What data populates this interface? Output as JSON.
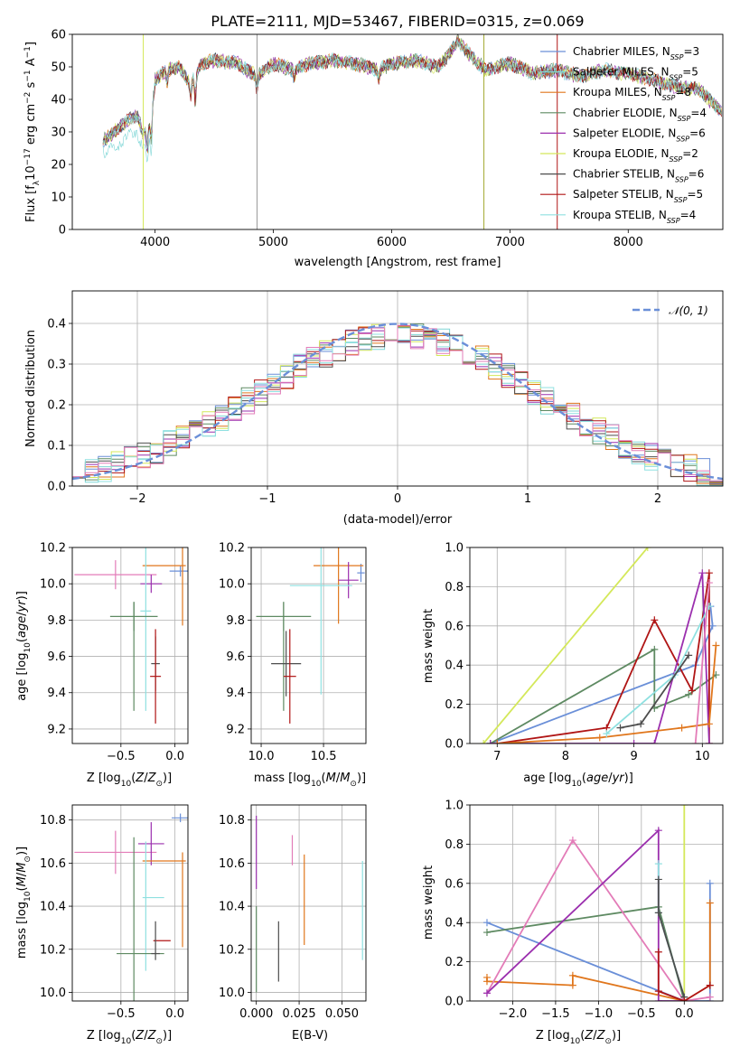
{
  "chart_data": [
    {
      "type": "line",
      "title": "PLATE=2111, MJD=53467, FIBERID=0315, z=0.069",
      "xlabel": "wavelength [Angstrom, rest frame]",
      "ylabel": "Flux [f_λ 10^-17 erg cm^-2 s^-1 A^-1]",
      "xlim": [
        3300,
        8800
      ],
      "ylim": [
        0,
        60
      ],
      "xticks": [
        "4000",
        "5000",
        "6000",
        "7000",
        "8000"
      ],
      "yticks": [
        "0",
        "10",
        "20",
        "30",
        "40",
        "50",
        "60"
      ],
      "grid": false,
      "legend_position": "top-right",
      "series": [
        {
          "name": "Chabrier MILES, N_SSP=3",
          "color": "#6a8fd8"
        },
        {
          "name": "Salpeter MILES, N_SSP=5",
          "color": "#7fd6d6"
        },
        {
          "name": "Kroupa MILES, N_SSP=8",
          "color": "#e0761c"
        },
        {
          "name": "Chabrier ELODIE, N_SSP=4",
          "color": "#5e8a62"
        },
        {
          "name": "Salpeter ELODIE, N_SSP=6",
          "color": "#9b2fae"
        },
        {
          "name": "Kroupa ELODIE, N_SSP=2",
          "color": "#d4e85a"
        },
        {
          "name": "Chabrier STELIB, N_SSP=6",
          "color": "#4d4d4d"
        },
        {
          "name": "Salpeter STELIB, N_SSP=5",
          "color": "#b01515"
        },
        {
          "name": "Kroupa STELIB, N_SSP=4",
          "color": "#8fe0e0"
        }
      ],
      "continuum": {
        "x": [
          3550,
          3650,
          3750,
          3850,
          3900,
          3960,
          4000,
          4100,
          4200,
          4300,
          4400,
          4500,
          4700,
          4862,
          5000,
          5175,
          5300,
          5500,
          5700,
          5890,
          6000,
          6200,
          6400,
          6563,
          6700,
          6800,
          7000,
          7200,
          7400,
          7600,
          7800,
          8000,
          8200,
          8400,
          8600,
          8800
        ],
        "y": [
          27,
          30,
          33,
          35,
          29,
          32,
          46,
          49,
          50,
          45,
          51,
          52,
          51,
          47,
          51,
          49,
          51,
          52,
          51,
          49,
          51,
          52,
          50,
          58,
          52,
          49,
          51,
          48,
          49,
          47,
          49,
          48,
          46,
          44,
          43,
          36
        ]
      },
      "spikes": [
        3900,
        4862,
        6780,
        7400
      ]
    },
    {
      "type": "histogram",
      "xlabel": "(data-model)/error",
      "ylabel": "Normed distribution",
      "xlim": [
        -2.5,
        2.5
      ],
      "ylim": [
        0,
        0.48
      ],
      "xticks": [
        "−2",
        "−1",
        "0",
        "1",
        "2"
      ],
      "yticks": [
        "0.0",
        "0.1",
        "0.2",
        "0.3",
        "0.4"
      ],
      "grid": true,
      "legend_position": "top-right",
      "legend": [
        "𝒩(0, 1)"
      ],
      "bin_width": 0.1,
      "reference_curve": {
        "name": "𝒩(0, 1)",
        "mean": 0,
        "sigma": 1,
        "color": "#6a8fd8"
      }
    },
    {
      "type": "scatter",
      "xlabel": "Z [log10(Z/Z⊙)]",
      "ylabel": "age  [log10(age/yr)]",
      "xlim": [
        -0.95,
        0.12
      ],
      "ylim": [
        9.12,
        10.2
      ],
      "xticks": [
        "−0.5",
        "0.0"
      ],
      "yticks": [
        "9.2",
        "9.4",
        "9.6",
        "9.8",
        "10.0",
        "10.2"
      ],
      "points": [
        {
          "x": -0.55,
          "xerr": 0.38,
          "y": 10.05,
          "yerr": 0.08,
          "color": "#e37cb8"
        },
        {
          "x": 0.05,
          "xerr": 0.1,
          "y": 10.07,
          "yerr": 0.03,
          "color": "#6a8fd8"
        },
        {
          "x": -0.1,
          "xerr": 0.2,
          "y": 10.1,
          "yerr": 0.0,
          "color": "#e0761c"
        },
        {
          "x": 0.07,
          "xerr": 0.0,
          "y": 10.05,
          "yerr": 0.28,
          "color": "#e0761c"
        },
        {
          "x": -0.22,
          "xerr": 0.1,
          "y": 10.0,
          "yerr": 0.05,
          "color": "#9b2fae"
        },
        {
          "x": -0.27,
          "xerr": 0.05,
          "y": 9.85,
          "yerr": 0.55,
          "color": "#8fe0e0"
        },
        {
          "x": -0.38,
          "xerr": 0.22,
          "y": 9.82,
          "yerr": 0.08,
          "color": "#5e8a62"
        },
        {
          "x": -0.38,
          "xerr": 0.0,
          "y": 9.6,
          "yerr": 0.3,
          "color": "#5e8a62"
        },
        {
          "x": -0.18,
          "xerr": 0.04,
          "y": 9.56,
          "yerr": 0.15,
          "color": "#4d4d4d"
        },
        {
          "x": -0.18,
          "xerr": 0.05,
          "y": 9.49,
          "yerr": 0.26,
          "color": "#b01515"
        }
      ]
    },
    {
      "type": "scatter",
      "xlabel": "mass [log10(M/M⊙)]",
      "ylabel": "",
      "xlim": [
        9.92,
        10.84
      ],
      "ylim": [
        9.12,
        10.2
      ],
      "xticks": [
        "10.0",
        "10.5"
      ],
      "yticks": [
        "9.2",
        "9.4",
        "9.6",
        "9.8",
        "10.0",
        "10.2"
      ],
      "points": [
        {
          "x": 10.8,
          "xerr": 0.03,
          "y": 10.06,
          "yerr": 0.05,
          "color": "#6a8fd8"
        },
        {
          "x": 10.62,
          "xerr": 0.2,
          "y": 10.1,
          "yerr": 0.32,
          "color": "#e0761c"
        },
        {
          "x": 10.7,
          "xerr": 0.08,
          "y": 10.02,
          "yerr": 0.1,
          "color": "#9b2fae"
        },
        {
          "x": 10.48,
          "xerr": 0.25,
          "y": 9.99,
          "yerr": 0.6,
          "color": "#8fe0e0"
        },
        {
          "x": 10.18,
          "xerr": 0.22,
          "y": 9.82,
          "yerr": 0.08,
          "color": "#5e8a62"
        },
        {
          "x": 10.18,
          "xerr": 0.0,
          "y": 9.6,
          "yerr": 0.3,
          "color": "#5e8a62"
        },
        {
          "x": 10.2,
          "xerr": 0.12,
          "y": 9.56,
          "yerr": 0.18,
          "color": "#4d4d4d"
        },
        {
          "x": 10.23,
          "xerr": 0.05,
          "y": 9.49,
          "yerr": 0.26,
          "color": "#b01515"
        }
      ]
    },
    {
      "type": "line",
      "xlabel": "age  [log10(age/yr)]",
      "ylabel": "mass weight",
      "xlim": [
        6.6,
        10.3
      ],
      "ylim": [
        0,
        1
      ],
      "xticks": [
        "7",
        "8",
        "9",
        "10"
      ],
      "yticks": [
        "0.0",
        "0.2",
        "0.4",
        "0.6",
        "0.8",
        "1.0"
      ],
      "grid": true,
      "series": [
        {
          "color": "#d4e85a",
          "x": [
            6.8,
            9.2
          ],
          "y": [
            0.0,
            1.0
          ]
        },
        {
          "color": "#6a8fd8",
          "x": [
            6.9,
            9.9,
            10.15,
            10.12
          ],
          "y": [
            0.0,
            0.4,
            0.6,
            0.7
          ]
        },
        {
          "color": "#5e8a62",
          "x": [
            6.9,
            9.3,
            9.3,
            9.8,
            10.2
          ],
          "y": [
            0.0,
            0.48,
            0.18,
            0.25,
            0.35
          ]
        },
        {
          "color": "#b01515",
          "x": [
            7.0,
            8.6,
            9.3,
            9.85,
            10.1,
            10.1
          ],
          "y": [
            0.0,
            0.08,
            0.63,
            0.27,
            0.87,
            0.0
          ]
        },
        {
          "color": "#9b2fae",
          "x": [
            6.9,
            9.0,
            9.3,
            10.0,
            10.1
          ],
          "y": [
            0.0,
            0.0,
            0.0,
            0.87,
            0.0
          ]
        },
        {
          "color": "#e0761c",
          "x": [
            7.0,
            8.5,
            9.7,
            10.1,
            10.2
          ],
          "y": [
            0.0,
            0.03,
            0.08,
            0.1,
            0.5
          ]
        },
        {
          "color": "#8fe0e0",
          "x": [
            8.6,
            9.6,
            10.1
          ],
          "y": [
            0.05,
            0.35,
            0.7
          ]
        },
        {
          "color": "#4d4d4d",
          "x": [
            8.8,
            9.1,
            9.8
          ],
          "y": [
            0.08,
            0.1,
            0.45
          ]
        },
        {
          "color": "#e37cb8",
          "x": [
            9.9,
            10.1
          ],
          "y": [
            0.0,
            0.82
          ]
        }
      ]
    },
    {
      "type": "scatter",
      "xlabel": "Z [log10(Z/Z⊙)]",
      "ylabel": "mass [log10(M/M⊙)]",
      "xlim": [
        -0.95,
        0.12
      ],
      "ylim": [
        9.96,
        10.87
      ],
      "xticks": [
        "−0.5",
        "0.0"
      ],
      "yticks": [
        "10.0",
        "10.2",
        "10.4",
        "10.6",
        "10.8"
      ],
      "points": [
        {
          "x": 0.05,
          "xerr": 0.08,
          "y": 10.81,
          "yerr": 0.02,
          "color": "#6a8fd8"
        },
        {
          "x": -0.55,
          "xerr": 0.38,
          "y": 10.65,
          "yerr": 0.1,
          "color": "#e37cb8"
        },
        {
          "x": -0.22,
          "xerr": 0.12,
          "y": 10.69,
          "yerr": 0.1,
          "color": "#9b2fae"
        },
        {
          "x": -0.1,
          "xerr": 0.2,
          "y": 10.61,
          "yerr": 0.0,
          "color": "#e0761c"
        },
        {
          "x": 0.07,
          "xerr": 0.0,
          "y": 10.43,
          "yerr": 0.22,
          "color": "#e0761c"
        },
        {
          "x": -0.2,
          "xerr": 0.1,
          "y": 10.44,
          "yerr": 0.0,
          "color": "#8fe0e0"
        },
        {
          "x": -0.27,
          "xerr": 0.0,
          "y": 10.4,
          "yerr": 0.3,
          "color": "#8fe0e0"
        },
        {
          "x": -0.38,
          "xerr": 0.0,
          "y": 10.34,
          "yerr": 0.38,
          "color": "#5e8a62"
        },
        {
          "x": -0.32,
          "xerr": 0.22,
          "y": 10.18,
          "yerr": 0.0,
          "color": "#5e8a62"
        },
        {
          "x": -0.12,
          "xerr": 0.08,
          "y": 10.24,
          "yerr": 0.0,
          "color": "#b01515"
        },
        {
          "x": -0.18,
          "xerr": 0.0,
          "y": 10.24,
          "yerr": 0.09,
          "color": "#4d4d4d"
        },
        {
          "x": -0.18,
          "xerr": 0.04,
          "y": 10.18,
          "yerr": 0.0,
          "color": "#4d4d4d"
        }
      ]
    },
    {
      "type": "scatter",
      "xlabel": "E(B-V)",
      "ylabel": "",
      "xlim": [
        -0.003,
        0.064
      ],
      "ylim": [
        9.96,
        10.87
      ],
      "xticks": [
        "0.000",
        "0.025",
        "0.050"
      ],
      "yticks": [
        "10.0",
        "10.2",
        "10.4",
        "10.6",
        "10.8"
      ],
      "points": [
        {
          "x": 0.0,
          "xerr": 0.0,
          "y": 10.65,
          "yerr": 0.17,
          "color": "#9b2fae"
        },
        {
          "x": 0.0,
          "xerr": 0.0,
          "y": 10.2,
          "yerr": 0.2,
          "color": "#5e8a62"
        },
        {
          "x": 0.013,
          "xerr": 0.0,
          "y": 10.19,
          "yerr": 0.14,
          "color": "#4d4d4d"
        },
        {
          "x": 0.021,
          "xerr": 0.0,
          "y": 10.66,
          "yerr": 0.07,
          "color": "#e37cb8"
        },
        {
          "x": 0.028,
          "xerr": 0.0,
          "y": 10.43,
          "yerr": 0.21,
          "color": "#e0761c"
        },
        {
          "x": 0.062,
          "xerr": 0.0,
          "y": 10.38,
          "yerr": 0.23,
          "color": "#8fe0e0"
        }
      ]
    },
    {
      "type": "line",
      "xlabel": "Z [log10(Z/Z⊙)]",
      "ylabel": "mass weight",
      "xlim": [
        -2.5,
        0.45
      ],
      "ylim": [
        0,
        1
      ],
      "xticks": [
        "−2.0",
        "−1.5",
        "−1.0",
        "−0.5",
        "0.0"
      ],
      "yticks": [
        "0.0",
        "0.2",
        "0.4",
        "0.6",
        "0.8",
        "1.0"
      ],
      "grid": true,
      "series": [
        {
          "color": "#d4e85a",
          "x": [
            0.0,
            0.0
          ],
          "y": [
            0.0,
            1.0
          ]
        },
        {
          "color": "#6a8fd8",
          "x": [
            -2.3,
            0.0,
            0.3,
            0.3
          ],
          "y": [
            0.4,
            0.0,
            0.0,
            0.6
          ]
        },
        {
          "color": "#5e8a62",
          "x": [
            -2.3,
            -0.3,
            0.0
          ],
          "y": [
            0.35,
            0.48,
            0.0
          ]
        },
        {
          "color": "#e0761c",
          "x": [
            -2.3,
            -2.3,
            -1.3,
            -1.3,
            0.0,
            0.3,
            0.3
          ],
          "y": [
            0.12,
            0.1,
            0.08,
            0.13,
            0.0,
            0.08,
            0.5
          ]
        },
        {
          "color": "#e37cb8",
          "x": [
            -2.3,
            -1.3,
            0.0,
            0.3
          ],
          "y": [
            0.04,
            0.82,
            0.0,
            0.02
          ]
        },
        {
          "color": "#9b2fae",
          "x": [
            -2.3,
            -0.3,
            -0.3,
            0.0
          ],
          "y": [
            0.04,
            0.87,
            0.0,
            0.0
          ]
        },
        {
          "color": "#8fe0e0",
          "x": [
            -0.3,
            -0.3,
            0.0
          ],
          "y": [
            0.7,
            0.45,
            0.02
          ]
        },
        {
          "color": "#4d4d4d",
          "x": [
            -0.3,
            -0.3,
            0.0
          ],
          "y": [
            0.62,
            0.45,
            0.02
          ]
        },
        {
          "color": "#b01515",
          "x": [
            -0.3,
            -0.3,
            0.0,
            0.3
          ],
          "y": [
            0.25,
            0.05,
            0.0,
            0.08
          ]
        }
      ]
    }
  ]
}
